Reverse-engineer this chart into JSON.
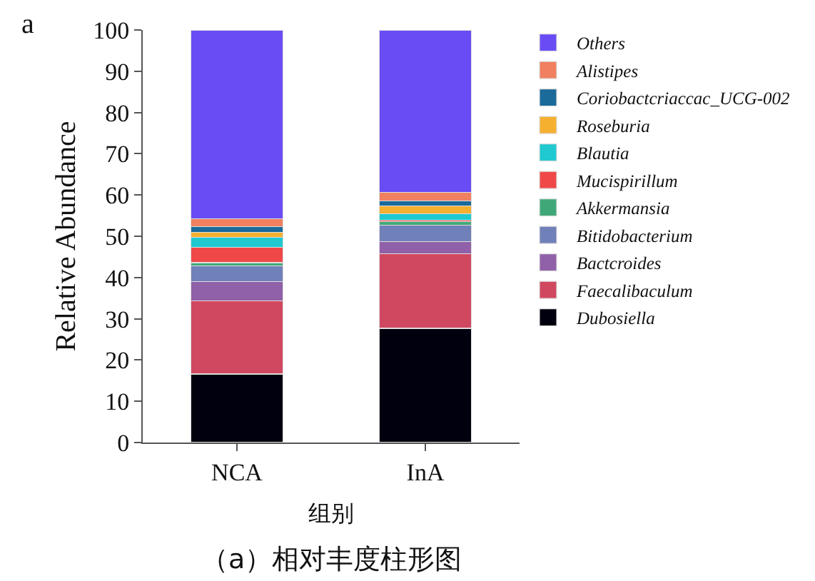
{
  "chart_data": {
    "type": "bar",
    "stacked": true,
    "ylabel": "Relative Abundance",
    "xlabel": "组别",
    "categories": [
      "NCA",
      "InA"
    ],
    "ylim": [
      0,
      100
    ],
    "yticks": [
      0,
      10,
      20,
      30,
      40,
      50,
      60,
      70,
      80,
      90,
      100
    ],
    "grid": false,
    "legend": "right",
    "annotations": [
      "a",
      "（a）相对丰度柱形图"
    ],
    "series": [
      {
        "name": "Dubosiella",
        "color": "#00000e",
        "values": [
          16.6,
          27.7
        ]
      },
      {
        "name": "Faecalibaculum",
        "color": "#d04860",
        "values": [
          17.7,
          18.1
        ]
      },
      {
        "name": "Bactcroides",
        "color": "#9060a8",
        "values": [
          4.7,
          2.9
        ]
      },
      {
        "name": "Bitidobacterium",
        "color": "#7080b8",
        "values": [
          3.8,
          4.0
        ]
      },
      {
        "name": "Akkermansia",
        "color": "#40a878",
        "values": [
          0.8,
          0.8
        ]
      },
      {
        "name": "Mucispirillum",
        "color": "#f04848",
        "values": [
          3.7,
          0.4
        ]
      },
      {
        "name": "Blautia",
        "color": "#20c8d0",
        "values": [
          2.4,
          1.5
        ]
      },
      {
        "name": "Roseburia",
        "color": "#f5b030",
        "values": [
          1.2,
          1.9
        ]
      },
      {
        "name": "Coriobactcriaccac_UCG-002",
        "color": "#1a6a9a",
        "values": [
          1.5,
          1.2
        ]
      },
      {
        "name": "Alistipes",
        "color": "#f08060",
        "values": [
          1.8,
          2.1
        ]
      },
      {
        "name": "Others",
        "color": "#6a4cf5",
        "values": [
          45.8,
          39.4
        ]
      }
    ]
  }
}
